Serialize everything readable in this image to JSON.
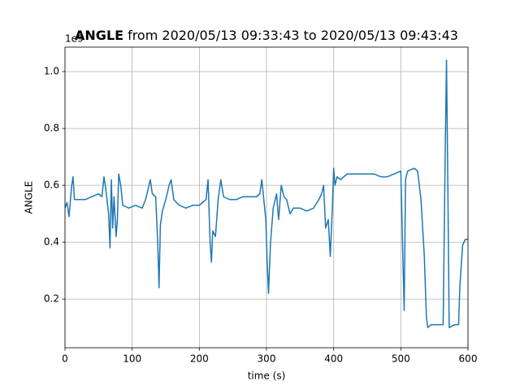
{
  "chart_data": {
    "type": "line",
    "title_bold": "ANGLE",
    "title_rest": "from 2020/05/13 09:33:43 to 2020/05/13 09:43:43",
    "xlabel": "time (s)",
    "ylabel": "ANGLE",
    "y_offset_text": "1e9",
    "xlim": [
      0,
      600
    ],
    "ylim": [
      0.029,
      1.086
    ],
    "xticks": [
      0,
      100,
      200,
      300,
      400,
      500,
      600
    ],
    "yticks": [
      0.2,
      0.4,
      0.6,
      0.8,
      {
        "value": 1,
        "label": "1.0"
      }
    ],
    "grid": true,
    "series": [
      {
        "color": "#1f77b4",
        "x": [
          0,
          3,
          6,
          10,
          12,
          14,
          20,
          30,
          40,
          50,
          55,
          58,
          60,
          62,
          65,
          67,
          69,
          71,
          73,
          76,
          78,
          80,
          83,
          86,
          95,
          105,
          115,
          120,
          123,
          127,
          130,
          135,
          138,
          140,
          142,
          145,
          150,
          155,
          158,
          162,
          170,
          180,
          190,
          200,
          210,
          213,
          216,
          218,
          220,
          224,
          228,
          232,
          236,
          245,
          255,
          265,
          275,
          285,
          290,
          293,
          296,
          299,
          301,
          303,
          306,
          310,
          315,
          318,
          322,
          326,
          330,
          335,
          340,
          350,
          360,
          370,
          378,
          382,
          385,
          388,
          392,
          395,
          398,
          400,
          402,
          405,
          410,
          420,
          430,
          440,
          450,
          460,
          470,
          480,
          490,
          500,
          503,
          505,
          507,
          510,
          520,
          525,
          530,
          535,
          538,
          540,
          545,
          555,
          563,
          566,
          568,
          570,
          572,
          580,
          586,
          588,
          592,
          596,
          600
        ],
        "values": [
          0.52,
          0.54,
          0.49,
          0.6,
          0.63,
          0.55,
          0.55,
          0.55,
          0.56,
          0.57,
          0.56,
          0.63,
          0.6,
          0.56,
          0.5,
          0.38,
          0.62,
          0.45,
          0.56,
          0.42,
          0.48,
          0.64,
          0.6,
          0.53,
          0.52,
          0.53,
          0.52,
          0.55,
          0.58,
          0.62,
          0.57,
          0.56,
          0.4,
          0.24,
          0.46,
          0.51,
          0.55,
          0.6,
          0.62,
          0.55,
          0.53,
          0.52,
          0.53,
          0.53,
          0.55,
          0.62,
          0.4,
          0.33,
          0.44,
          0.42,
          0.55,
          0.62,
          0.56,
          0.55,
          0.55,
          0.56,
          0.56,
          0.56,
          0.57,
          0.62,
          0.55,
          0.48,
          0.33,
          0.22,
          0.4,
          0.52,
          0.57,
          0.48,
          0.6,
          0.56,
          0.55,
          0.5,
          0.52,
          0.52,
          0.51,
          0.52,
          0.55,
          0.57,
          0.6,
          0.45,
          0.48,
          0.35,
          0.52,
          0.66,
          0.6,
          0.63,
          0.62,
          0.64,
          0.64,
          0.64,
          0.64,
          0.64,
          0.63,
          0.63,
          0.64,
          0.65,
          0.35,
          0.16,
          0.62,
          0.65,
          0.66,
          0.65,
          0.55,
          0.35,
          0.14,
          0.1,
          0.11,
          0.11,
          0.11,
          0.7,
          1.04,
          0.6,
          0.1,
          0.11,
          0.11,
          0.25,
          0.39,
          0.41,
          0.41
        ]
      }
    ]
  }
}
